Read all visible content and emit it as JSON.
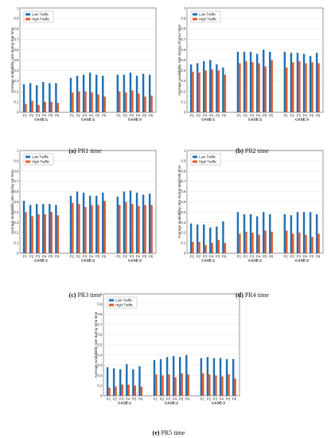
{
  "colors": {
    "low": "#1f6fb4",
    "high": "#e05a2b",
    "axis": "#333333",
    "grid": "#e6e6e6"
  },
  "legend": {
    "low": "Low Traffic",
    "high": "High Traffic"
  },
  "chart_data": [
    {
      "type": "bar",
      "caption_label": "(a)",
      "caption_text": "PR1 time",
      "ylabel": "Average availability rate during Fajr time",
      "ylim": [
        0,
        1
      ],
      "yticks": [
        "0",
        "0.1",
        "0.2",
        "0.3",
        "0.4",
        "0.5",
        "0.6",
        "0.7",
        "0.8",
        "0.9",
        "1"
      ],
      "groups": [
        "CASE-1",
        "CASE-2",
        "CASE-3"
      ],
      "categories": [
        "P1",
        "P2",
        "P3",
        "P4",
        "P5",
        "P6"
      ],
      "series": [
        {
          "name": "Low Traffic",
          "values": [
            [
              0.27,
              0.28,
              0.26,
              0.29,
              0.28,
              0.28
            ],
            [
              0.33,
              0.35,
              0.36,
              0.38,
              0.36,
              0.35
            ],
            [
              0.36,
              0.36,
              0.38,
              0.35,
              0.37,
              0.36
            ]
          ]
        },
        {
          "name": "High Traffic",
          "values": [
            [
              0.08,
              0.11,
              0.07,
              0.1,
              0.1,
              0.09
            ],
            [
              0.19,
              0.2,
              0.2,
              0.19,
              0.17,
              0.15
            ],
            [
              0.2,
              0.19,
              0.21,
              0.18,
              0.15,
              0.16
            ]
          ]
        }
      ]
    },
    {
      "type": "bar",
      "caption_label": "(b)",
      "caption_text": "PR2 time",
      "ylabel": "Average availability rate during Dhuhur time",
      "ylim": [
        0,
        1
      ],
      "yticks": [
        "0",
        "0.1",
        "0.2",
        "0.3",
        "0.4",
        "0.5",
        "0.6",
        "0.7",
        "0.8",
        "0.9",
        "1"
      ],
      "groups": [
        "CASE-1",
        "CASE-2",
        "CASE-3"
      ],
      "categories": [
        "P1",
        "P2",
        "P3",
        "P4",
        "P5",
        "P6"
      ],
      "series": [
        {
          "name": "Low Traffic",
          "values": [
            [
              0.46,
              0.47,
              0.49,
              0.5,
              0.46,
              0.43
            ],
            [
              0.58,
              0.58,
              0.58,
              0.56,
              0.6,
              0.58
            ],
            [
              0.58,
              0.57,
              0.57,
              0.56,
              0.54,
              0.57
            ]
          ]
        },
        {
          "name": "High Traffic",
          "values": [
            [
              0.39,
              0.38,
              0.4,
              0.41,
              0.4,
              0.36
            ],
            [
              0.47,
              0.49,
              0.48,
              0.47,
              0.44,
              0.5
            ],
            [
              0.43,
              0.48,
              0.49,
              0.47,
              0.48,
              0.47
            ]
          ]
        }
      ]
    },
    {
      "type": "bar",
      "caption_label": "(c)",
      "caption_text": "PR3 time",
      "ylabel": "Average availability rate during Asr time",
      "ylim": [
        0,
        1
      ],
      "yticks": [
        "0",
        "0.1",
        "0.2",
        "0.3",
        "0.4",
        "0.5",
        "0.6",
        "0.7",
        "0.8",
        "0.9",
        "1"
      ],
      "groups": [
        "CASE-1",
        "CASE-2",
        "CASE-3"
      ],
      "categories": [
        "P1",
        "P2",
        "P3",
        "P4",
        "P5",
        "P6"
      ],
      "series": [
        {
          "name": "Low Traffic",
          "values": [
            [
              0.51,
              0.47,
              0.48,
              0.48,
              0.48,
              0.47
            ],
            [
              0.56,
              0.6,
              0.59,
              0.56,
              0.56,
              0.59
            ],
            [
              0.55,
              0.6,
              0.61,
              0.59,
              0.57,
              0.58
            ]
          ]
        },
        {
          "name": "High Traffic",
          "values": [
            [
              0.4,
              0.36,
              0.38,
              0.38,
              0.4,
              0.37
            ],
            [
              0.49,
              0.48,
              0.45,
              0.47,
              0.47,
              0.51
            ],
            [
              0.47,
              0.5,
              0.48,
              0.46,
              0.47,
              0.47
            ]
          ]
        }
      ]
    },
    {
      "type": "bar",
      "caption_label": "(d)",
      "caption_text": "PR4 time",
      "ylabel": "Average availability rate during Maghreb time",
      "ylim": [
        0,
        1
      ],
      "yticks": [
        "0",
        "0.1",
        "0.2",
        "0.3",
        "0.4",
        "0.5",
        "0.6",
        "0.7",
        "0.8",
        "0.9",
        "1"
      ],
      "groups": [
        "CASE-1",
        "CASE-2",
        "CASE-3"
      ],
      "categories": [
        "P1",
        "P2",
        "P3",
        "P4",
        "P5",
        "P6"
      ],
      "series": [
        {
          "name": "Low Traffic",
          "values": [
            [
              0.29,
              0.28,
              0.28,
              0.25,
              0.26,
              0.31
            ],
            [
              0.4,
              0.38,
              0.38,
              0.36,
              0.4,
              0.38
            ],
            [
              0.38,
              0.37,
              0.4,
              0.4,
              0.4,
              0.38
            ]
          ]
        },
        {
          "name": "High Traffic",
          "values": [
            [
              0.11,
              0.11,
              0.08,
              0.1,
              0.13,
              0.1
            ],
            [
              0.19,
              0.21,
              0.2,
              0.18,
              0.22,
              0.21
            ],
            [
              0.22,
              0.19,
              0.2,
              0.18,
              0.16,
              0.19
            ]
          ]
        }
      ]
    },
    {
      "type": "bar",
      "caption_label": "(e)",
      "caption_text": "PR5 time",
      "ylabel": "Average availability rate during Isha time",
      "ylim": [
        0,
        1
      ],
      "yticks": [
        "0",
        "0.1",
        "0.2",
        "0.3",
        "0.4",
        "0.5",
        "0.6",
        "0.7",
        "0.8",
        "0.9",
        "1"
      ],
      "groups": [
        "CASE-1",
        "CASE-2",
        "CASE-3"
      ],
      "categories": [
        "P1",
        "P2",
        "P3",
        "P4",
        "P5",
        "P6"
      ],
      "series": [
        {
          "name": "Low Traffic",
          "values": [
            [
              0.28,
              0.27,
              0.26,
              0.31,
              0.26,
              0.29
            ],
            [
              0.35,
              0.36,
              0.38,
              0.39,
              0.38,
              0.4
            ],
            [
              0.37,
              0.38,
              0.37,
              0.37,
              0.36,
              0.36
            ]
          ]
        },
        {
          "name": "High Traffic",
          "values": [
            [
              0.08,
              0.09,
              0.11,
              0.11,
              0.1,
              0.09
            ],
            [
              0.21,
              0.2,
              0.21,
              0.18,
              0.22,
              0.21
            ],
            [
              0.22,
              0.21,
              0.2,
              0.19,
              0.21,
              0.17
            ]
          ]
        }
      ]
    }
  ]
}
